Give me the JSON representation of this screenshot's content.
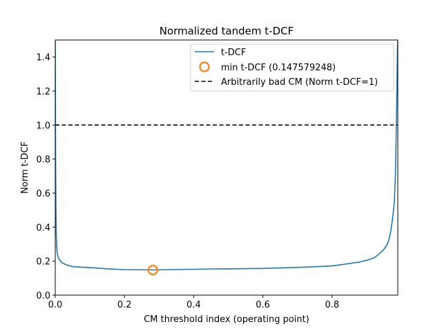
{
  "chart_data": {
    "type": "line",
    "title": "Normalized tandem t-DCF",
    "xlabel": "CM threshold index (operating point)",
    "ylabel": "Norm t-DCF",
    "xlim": [
      0.0,
      0.99
    ],
    "ylim": [
      0.0,
      1.5
    ],
    "xticks": [
      0.0,
      0.2,
      0.4,
      0.6,
      0.8
    ],
    "xtick_labels": [
      "0.0",
      "0.2",
      "0.4",
      "0.6",
      "0.8"
    ],
    "yticks": [
      0.0,
      0.2,
      0.4,
      0.6,
      0.8,
      1.0,
      1.2,
      1.4
    ],
    "ytick_labels": [
      "0.0",
      "0.2",
      "0.4",
      "0.6",
      "0.8",
      "1.0",
      "1.2",
      "1.4"
    ],
    "grid": false,
    "legend_position": "top-right",
    "series": [
      {
        "name": "t-DCF",
        "color": "#1f77b4",
        "style": "solid",
        "x": [
          0.0,
          0.001,
          0.002,
          0.003,
          0.004,
          0.005,
          0.007,
          0.01,
          0.015,
          0.02,
          0.03,
          0.04,
          0.05,
          0.07,
          0.1,
          0.15,
          0.2,
          0.25,
          0.28,
          0.3,
          0.35,
          0.4,
          0.45,
          0.5,
          0.55,
          0.6,
          0.65,
          0.7,
          0.75,
          0.8,
          0.82,
          0.85,
          0.88,
          0.9,
          0.92,
          0.93,
          0.94,
          0.95,
          0.96,
          0.965,
          0.97,
          0.975,
          0.98,
          0.983,
          0.985,
          0.987,
          0.989,
          0.99
        ],
        "y": [
          1.5,
          0.8,
          0.5,
          0.35,
          0.29,
          0.26,
          0.235,
          0.215,
          0.2,
          0.19,
          0.18,
          0.173,
          0.168,
          0.165,
          0.162,
          0.155,
          0.15,
          0.149,
          0.148,
          0.149,
          0.151,
          0.152,
          0.154,
          0.155,
          0.156,
          0.157,
          0.16,
          0.163,
          0.167,
          0.172,
          0.177,
          0.186,
          0.195,
          0.205,
          0.218,
          0.232,
          0.25,
          0.27,
          0.3,
          0.33,
          0.38,
          0.45,
          0.55,
          0.7,
          0.9,
          1.15,
          1.45,
          1.5
        ]
      },
      {
        "name": "min t-DCF (0.147579248)",
        "color": "#ff7f0e",
        "style": "marker-circle-open",
        "x": [
          0.282
        ],
        "y": [
          0.147579248
        ]
      },
      {
        "name": "Arbitrarily bad CM (Norm t-DCF=1)",
        "color": "#000000",
        "style": "dashed",
        "x": [
          0.0,
          0.99
        ],
        "y": [
          1.0,
          1.0
        ]
      }
    ]
  }
}
